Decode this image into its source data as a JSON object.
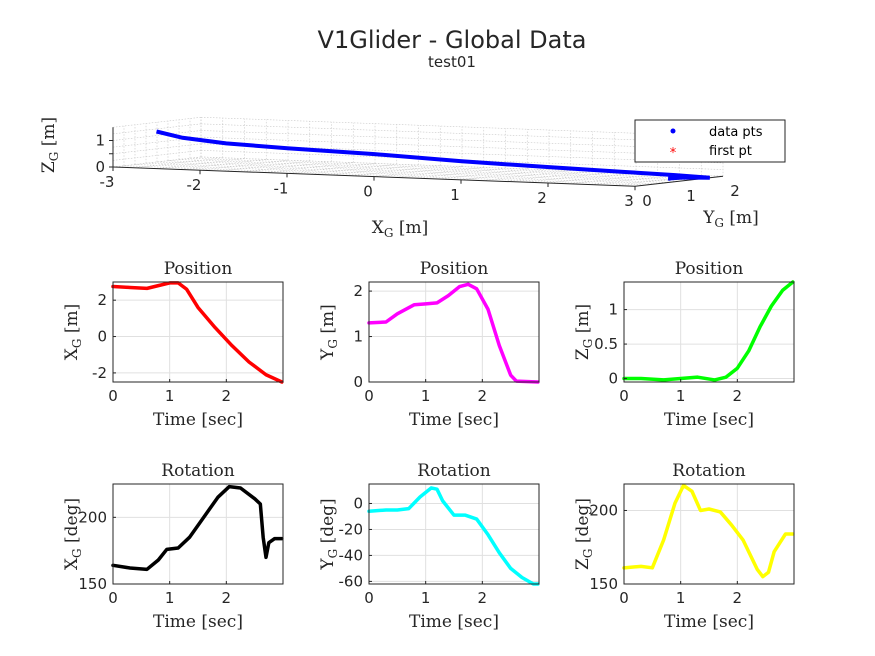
{
  "figure": {
    "title": "V1Glider - Global Data",
    "subtitle": "test01"
  },
  "chart_data": [
    {
      "type": "line3d",
      "xlabel": "X_G [m]",
      "ylabel": "Y_G [m]",
      "zlabel": "Z_G [m]",
      "xlim": [
        -3,
        3
      ],
      "ylim": [
        0,
        2
      ],
      "zlim": [
        0,
        1.5
      ],
      "x_ticks": [
        "-3",
        "-2",
        "-1",
        "0",
        "1",
        "2",
        "3"
      ],
      "y_ticks": [
        "0",
        "1",
        "2"
      ],
      "z_ticks": [
        "0",
        "0.5",
        "1"
      ],
      "grid": true,
      "legend": {
        "placement": "top-right",
        "entries": [
          "data pts",
          "first pt"
        ]
      },
      "series": [
        {
          "name": "data pts",
          "color": "#0000ff",
          "x": [
            2.75,
            2.7,
            2.8,
            3.0,
            2.5,
            1.8,
            1.0,
            0.2,
            -0.6,
            -1.3,
            -1.8,
            -2.2,
            -2.5
          ],
          "y": [
            1.3,
            1.35,
            1.5,
            1.7,
            1.9,
            2.1,
            2.0,
            1.6,
            1.2,
            0.6,
            0.2,
            0.0,
            0.0
          ],
          "z": [
            0.0,
            0.0,
            0.02,
            0.0,
            0.0,
            0.0,
            0.1,
            0.3,
            0.55,
            0.8,
            1.0,
            1.2,
            1.4
          ]
        },
        {
          "name": "first pt",
          "color": "#ff0000",
          "x": [
            2.75
          ],
          "y": [
            1.3
          ],
          "z": [
            0.0
          ]
        }
      ]
    },
    {
      "type": "line",
      "title": "Position",
      "xlabel": "Time [sec]",
      "ylabel": "X_G [m]",
      "xlim": [
        0,
        3
      ],
      "ylim": [
        -2.5,
        3
      ],
      "x_ticks": [
        0,
        1,
        2
      ],
      "y_ticks": [
        -2,
        0,
        2
      ],
      "grid": true,
      "series": [
        {
          "color": "#ff0000",
          "x": [
            0,
            0.3,
            0.6,
            0.8,
            1.0,
            1.15,
            1.3,
            1.5,
            1.8,
            2.1,
            2.4,
            2.7,
            2.98
          ],
          "y": [
            2.75,
            2.7,
            2.65,
            2.8,
            2.95,
            2.95,
            2.6,
            1.6,
            0.5,
            -0.5,
            -1.4,
            -2.1,
            -2.5
          ]
        }
      ]
    },
    {
      "type": "line",
      "title": "Position",
      "xlabel": "Time [sec]",
      "ylabel": "Y_G [m]",
      "xlim": [
        0,
        3
      ],
      "ylim": [
        0,
        2.2
      ],
      "x_ticks": [
        0,
        1,
        2
      ],
      "y_ticks": [
        0,
        1,
        2
      ],
      "grid": true,
      "series": [
        {
          "color": "#ff00ff",
          "x": [
            0,
            0.3,
            0.5,
            0.8,
            1.0,
            1.2,
            1.4,
            1.6,
            1.75,
            1.9,
            2.1,
            2.3,
            2.5,
            2.6,
            2.98
          ],
          "y": [
            1.3,
            1.32,
            1.5,
            1.7,
            1.72,
            1.74,
            1.9,
            2.1,
            2.15,
            2.05,
            1.6,
            0.8,
            0.15,
            0.02,
            0.0
          ]
        }
      ]
    },
    {
      "type": "line",
      "title": "Position",
      "xlabel": "Time [sec]",
      "ylabel": "Z_G [m]",
      "xlim": [
        0,
        3
      ],
      "ylim": [
        -0.05,
        1.4
      ],
      "x_ticks": [
        0,
        1,
        2
      ],
      "y_ticks": [
        0,
        0.5,
        1
      ],
      "grid": true,
      "series": [
        {
          "color": "#00ff00",
          "x": [
            0,
            0.3,
            0.7,
            1.0,
            1.3,
            1.6,
            1.8,
            2.0,
            2.2,
            2.4,
            2.6,
            2.8,
            2.98
          ],
          "y": [
            0.0,
            0.0,
            -0.02,
            0.0,
            0.02,
            -0.02,
            0.02,
            0.15,
            0.4,
            0.75,
            1.05,
            1.28,
            1.4
          ]
        }
      ]
    },
    {
      "type": "line",
      "title": "Rotation",
      "xlabel": "Time [sec]",
      "ylabel": "X_G [deg]",
      "xlim": [
        0,
        3
      ],
      "ylim": [
        150,
        225
      ],
      "x_ticks": [
        0,
        1,
        2
      ],
      "y_ticks": [
        150,
        200
      ],
      "grid": true,
      "series": [
        {
          "color": "#000000",
          "x": [
            0,
            0.3,
            0.6,
            0.8,
            0.95,
            1.15,
            1.35,
            1.6,
            1.85,
            2.05,
            2.25,
            2.5,
            2.6,
            2.65,
            2.7,
            2.75,
            2.85,
            2.98
          ],
          "y": [
            164,
            162,
            161,
            168,
            176,
            177,
            185,
            200,
            215,
            223,
            222,
            214,
            210,
            185,
            170,
            181,
            184,
            184
          ]
        }
      ]
    },
    {
      "type": "line",
      "title": "Rotation",
      "xlabel": "Time [sec]",
      "ylabel": "Y_G [deg]",
      "xlim": [
        0,
        3
      ],
      "ylim": [
        -62,
        15
      ],
      "x_ticks": [
        0,
        1,
        2
      ],
      "y_ticks": [
        -60,
        -40,
        -20,
        0
      ],
      "grid": true,
      "series": [
        {
          "color": "#00ffff",
          "x": [
            0,
            0.3,
            0.5,
            0.7,
            0.9,
            1.1,
            1.2,
            1.3,
            1.5,
            1.7,
            1.9,
            2.1,
            2.3,
            2.5,
            2.7,
            2.9,
            2.98
          ],
          "y": [
            -6,
            -5,
            -5,
            -4,
            5,
            12,
            11,
            2,
            -9,
            -9,
            -12,
            -24,
            -38,
            -50,
            -57,
            -62,
            -62
          ]
        }
      ]
    },
    {
      "type": "line",
      "title": "Rotation",
      "xlabel": "Time [sec]",
      "ylabel": "Z_G [deg]",
      "xlim": [
        0,
        3
      ],
      "ylim": [
        150,
        218
      ],
      "x_ticks": [
        0,
        1,
        2
      ],
      "y_ticks": [
        150,
        200
      ],
      "grid": true,
      "series": [
        {
          "color": "#ffff00",
          "x": [
            0,
            0.3,
            0.5,
            0.7,
            0.9,
            1.05,
            1.2,
            1.35,
            1.5,
            1.7,
            1.9,
            2.1,
            2.25,
            2.35,
            2.45,
            2.55,
            2.65,
            2.75,
            2.85,
            2.98
          ],
          "y": [
            161,
            162,
            161,
            180,
            205,
            217,
            213,
            200,
            201,
            199,
            190,
            180,
            168,
            160,
            155,
            158,
            172,
            178,
            184,
            184
          ]
        }
      ]
    }
  ]
}
